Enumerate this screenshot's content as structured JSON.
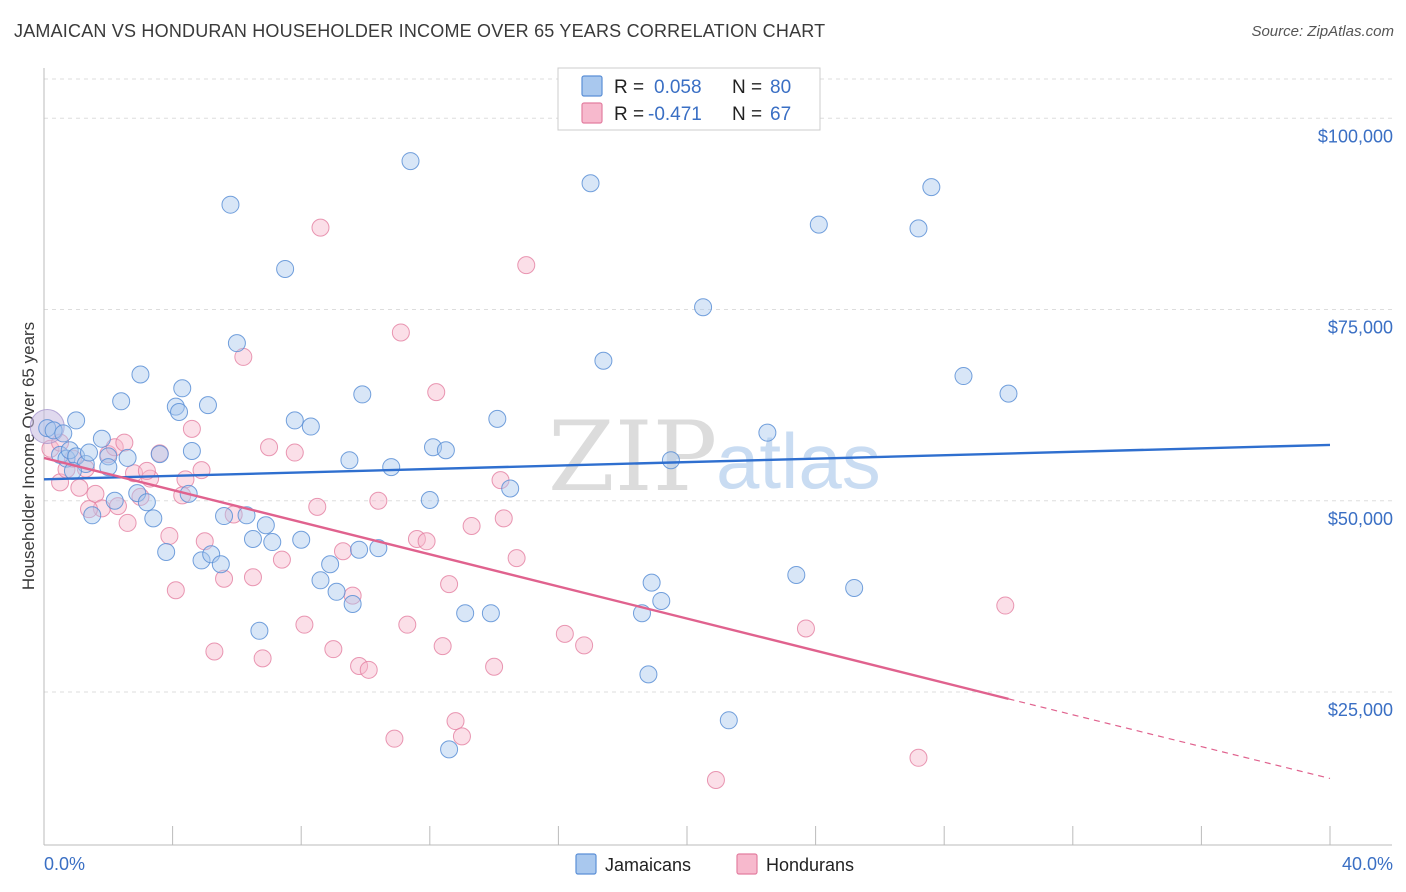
{
  "title": "JAMAICAN VS HONDURAN HOUSEHOLDER INCOME OVER 65 YEARS CORRELATION CHART",
  "source": "Source: ZipAtlas.com",
  "watermark": {
    "zip": "ZIP",
    "atlas": "atlas"
  },
  "colors": {
    "jamaicans_fill": "#a9c8ee",
    "jamaicans_stroke": "#5b8fd6",
    "jamaicans_line": "#2f6fcf",
    "hondurans_fill": "#f7b9cd",
    "hondurans_stroke": "#e37ea0",
    "hondurans_line": "#e0628e",
    "axis_label": "#3a6fc4"
  },
  "legend": {
    "rows": [
      {
        "r_label": "R =",
        "r_value": "0.058",
        "n_label": "N =",
        "n_value": "80"
      },
      {
        "r_label": "R =",
        "r_value": "-0.471",
        "n_label": "N =",
        "n_value": "67"
      }
    ]
  },
  "chart_data": {
    "type": "scatter",
    "title": "JAMAICAN VS HONDURAN HOUSEHOLDER INCOME OVER 65 YEARS CORRELATION CHART",
    "xlabel": "",
    "ylabel": "Householder Income Over 65 years",
    "xlim": [
      0,
      40
    ],
    "ylim": [
      5000,
      105000
    ],
    "x_tick_labels": [
      "0.0%",
      "40.0%"
    ],
    "y_ticks": [
      25000,
      50000,
      75000,
      100000
    ],
    "y_tick_labels": [
      "$25,000",
      "$50,000",
      "$75,000",
      "$100,000"
    ],
    "grid": "horizontal dashed",
    "legend_position": "top-center",
    "series": [
      {
        "name": "Jamaicans",
        "r": 0.058,
        "n": 80,
        "trend": {
          "x": [
            0,
            40
          ],
          "y": [
            52800,
            57300
          ]
        },
        "points": [
          [
            0.1,
            59500
          ],
          [
            0.3,
            59200
          ],
          [
            0.5,
            56000
          ],
          [
            0.6,
            58800
          ],
          [
            0.7,
            55500
          ],
          [
            0.8,
            56600
          ],
          [
            1.0,
            55800
          ],
          [
            1.0,
            60500
          ],
          [
            1.3,
            54800
          ],
          [
            1.4,
            56300
          ],
          [
            1.5,
            48100
          ],
          [
            1.8,
            58100
          ],
          [
            2.0,
            55800
          ],
          [
            2.2,
            50000
          ],
          [
            2.4,
            63000
          ],
          [
            2.6,
            55600
          ],
          [
            2.9,
            51000
          ],
          [
            3.0,
            66500
          ],
          [
            3.2,
            49800
          ],
          [
            3.4,
            47700
          ],
          [
            3.6,
            56100
          ],
          [
            3.8,
            43300
          ],
          [
            4.1,
            62300
          ],
          [
            4.2,
            61600
          ],
          [
            4.3,
            64700
          ],
          [
            4.5,
            50900
          ],
          [
            4.6,
            56500
          ],
          [
            4.9,
            42200
          ],
          [
            5.1,
            62500
          ],
          [
            5.2,
            43000
          ],
          [
            5.5,
            41700
          ],
          [
            5.6,
            48000
          ],
          [
            5.8,
            88700
          ],
          [
            6.0,
            70600
          ],
          [
            6.3,
            48100
          ],
          [
            6.5,
            45000
          ],
          [
            6.7,
            33000
          ],
          [
            6.9,
            46800
          ],
          [
            7.1,
            44600
          ],
          [
            7.5,
            80300
          ],
          [
            7.8,
            60500
          ],
          [
            8.0,
            44900
          ],
          [
            8.3,
            59700
          ],
          [
            8.6,
            39600
          ],
          [
            8.9,
            41700
          ],
          [
            9.1,
            38100
          ],
          [
            9.5,
            55300
          ],
          [
            9.6,
            36500
          ],
          [
            9.8,
            43600
          ],
          [
            9.9,
            63900
          ],
          [
            10.4,
            43800
          ],
          [
            10.8,
            54400
          ],
          [
            11.4,
            94400
          ],
          [
            12.0,
            50100
          ],
          [
            12.1,
            57000
          ],
          [
            12.5,
            56600
          ],
          [
            12.6,
            17500
          ],
          [
            13.1,
            35300
          ],
          [
            13.9,
            35300
          ],
          [
            14.1,
            60700
          ],
          [
            14.5,
            51600
          ],
          [
            17.0,
            91500
          ],
          [
            17.4,
            68300
          ],
          [
            18.6,
            35300
          ],
          [
            18.8,
            27300
          ],
          [
            18.9,
            39300
          ],
          [
            19.2,
            36900
          ],
          [
            19.5,
            55300
          ],
          [
            20.5,
            75300
          ],
          [
            21.3,
            21300
          ],
          [
            22.5,
            58900
          ],
          [
            23.4,
            40300
          ],
          [
            24.1,
            86100
          ],
          [
            25.2,
            38600
          ],
          [
            27.2,
            85600
          ],
          [
            27.6,
            91000
          ],
          [
            28.6,
            66300
          ],
          [
            30.0,
            64000
          ],
          [
            0.9,
            53900
          ],
          [
            2.0,
            54400
          ]
        ]
      },
      {
        "name": "Hondurans",
        "r": -0.471,
        "n": 67,
        "trend": {
          "x": [
            0,
            30
          ],
          "y": [
            55600,
            24100
          ]
        },
        "trend_dashed": {
          "x": [
            30,
            40
          ],
          "y": [
            24100,
            13700
          ]
        },
        "points": [
          [
            0.2,
            56800
          ],
          [
            0.5,
            52400
          ],
          [
            0.7,
            54100
          ],
          [
            0.9,
            55500
          ],
          [
            1.1,
            51700
          ],
          [
            1.3,
            54200
          ],
          [
            1.6,
            50900
          ],
          [
            1.8,
            49000
          ],
          [
            2.0,
            56100
          ],
          [
            2.2,
            57000
          ],
          [
            2.3,
            49300
          ],
          [
            2.5,
            57600
          ],
          [
            2.8,
            53600
          ],
          [
            3.0,
            50500
          ],
          [
            3.3,
            52900
          ],
          [
            3.6,
            56200
          ],
          [
            3.9,
            45400
          ],
          [
            4.1,
            38300
          ],
          [
            4.4,
            52800
          ],
          [
            4.6,
            59400
          ],
          [
            4.9,
            54000
          ],
          [
            5.0,
            44700
          ],
          [
            5.3,
            30300
          ],
          [
            5.6,
            39800
          ],
          [
            5.9,
            48200
          ],
          [
            6.2,
            68800
          ],
          [
            6.5,
            40000
          ],
          [
            6.8,
            29400
          ],
          [
            7.0,
            57000
          ],
          [
            7.4,
            42300
          ],
          [
            7.8,
            56300
          ],
          [
            8.1,
            33800
          ],
          [
            8.5,
            49200
          ],
          [
            8.6,
            85700
          ],
          [
            9.0,
            30600
          ],
          [
            9.3,
            43400
          ],
          [
            9.6,
            37600
          ],
          [
            9.8,
            28400
          ],
          [
            10.1,
            27900
          ],
          [
            10.4,
            50000
          ],
          [
            10.9,
            18900
          ],
          [
            11.1,
            72000
          ],
          [
            11.3,
            33800
          ],
          [
            11.6,
            45000
          ],
          [
            11.9,
            44700
          ],
          [
            12.2,
            64200
          ],
          [
            12.4,
            31000
          ],
          [
            12.6,
            39100
          ],
          [
            12.8,
            21200
          ],
          [
            13.0,
            19200
          ],
          [
            13.3,
            46700
          ],
          [
            14.0,
            28300
          ],
          [
            14.2,
            52700
          ],
          [
            14.3,
            47700
          ],
          [
            14.7,
            42500
          ],
          [
            15.0,
            80800
          ],
          [
            16.2,
            32600
          ],
          [
            16.8,
            31100
          ],
          [
            20.9,
            13500
          ],
          [
            23.7,
            33300
          ],
          [
            27.2,
            16400
          ],
          [
            29.9,
            36300
          ],
          [
            1.4,
            48900
          ],
          [
            0.5,
            57600
          ],
          [
            2.6,
            47100
          ],
          [
            3.2,
            53900
          ],
          [
            4.3,
            50700
          ]
        ]
      }
    ]
  },
  "bottom_legend": {
    "jamaicans": "Jamaicans",
    "hondurans": "Hondurans"
  }
}
